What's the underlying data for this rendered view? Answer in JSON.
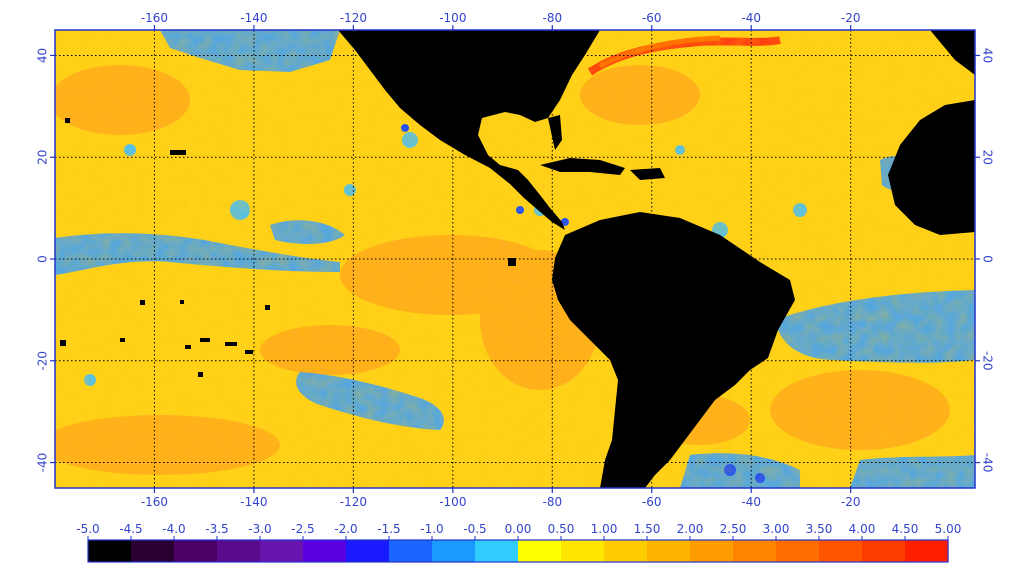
{
  "chart_data": {
    "type": "heatmap",
    "title": "",
    "map": {
      "lon_range": [
        -180,
        5
      ],
      "lat_range": [
        -45,
        45
      ],
      "gridlines": true,
      "grid_style": "dotted",
      "land_color": "#000000"
    },
    "x_ticks": [
      "-160",
      "-140",
      "-120",
      "-100",
      "-80",
      "-60",
      "-40",
      "-20"
    ],
    "x_tick_values": [
      -160,
      -140,
      -120,
      -100,
      -80,
      -60,
      -40,
      -20
    ],
    "y_ticks": [
      "40",
      "20",
      "0",
      "-20",
      "-40"
    ],
    "y_tick_values": [
      40,
      20,
      0,
      -20,
      -40
    ],
    "colorbar": {
      "labels": [
        "-5.0",
        "-4.5",
        "-4.0",
        "-3.5",
        "-3.0",
        "-2.5",
        "-2.0",
        "-1.5",
        "-1.0",
        "-0.5",
        "0.00",
        "0.50",
        "1.00",
        "1.50",
        "2.00",
        "2.50",
        "3.00",
        "3.50",
        "4.00",
        "4.50",
        "5.00"
      ],
      "colors": [
        "#000000",
        "#2a0033",
        "#4d0066",
        "#5c0a8c",
        "#6a14b0",
        "#5a00e0",
        "#1a1aff",
        "#1a66ff",
        "#1a9aff",
        "#33ccff",
        "#ffff00",
        "#ffe600",
        "#ffcc00",
        "#ffb400",
        "#ff9c00",
        "#ff8400",
        "#ff6c00",
        "#ff5400",
        "#ff3c00",
        "#ff2000"
      ]
    }
  }
}
